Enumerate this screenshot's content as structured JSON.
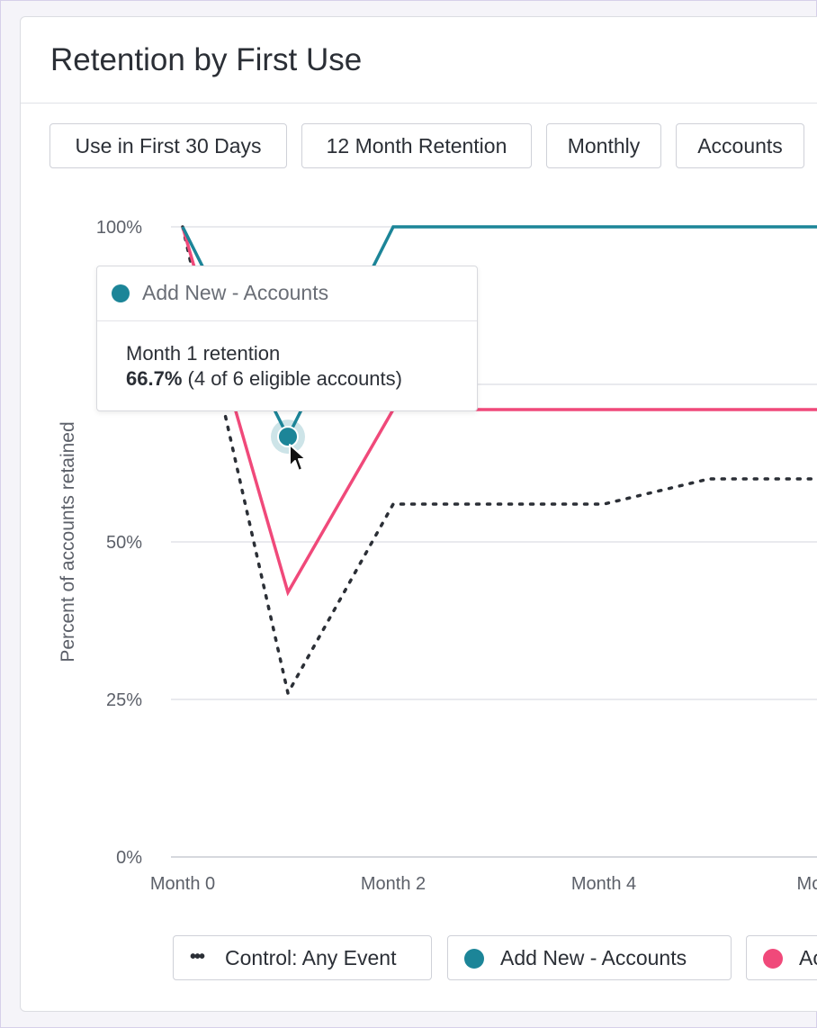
{
  "card": {
    "title": "Retention by First Use"
  },
  "filters": [
    {
      "label": "Use in First 30 Days"
    },
    {
      "label": "12 Month Retention"
    },
    {
      "label": "Monthly"
    },
    {
      "label": "Accounts"
    }
  ],
  "tooltip": {
    "series": "Add New - Accounts",
    "title": "Month 1 retention",
    "value": "66.7%",
    "detail": "(4 of 6 eligible accounts)"
  },
  "legend": [
    {
      "label": "Control: Any Event",
      "marker": "dots",
      "color": "#2b2f36"
    },
    {
      "label": "Add New - Accounts",
      "marker": "circle",
      "color": "#1c8598"
    },
    {
      "label": "Ac",
      "marker": "circle",
      "color": "#f0497a"
    }
  ],
  "chart_data": {
    "type": "line",
    "ylabel": "Percent of accounts retained",
    "ylim": [
      0,
      100
    ],
    "yticks": [
      "0%",
      "25%",
      "50%",
      "75%",
      "100%"
    ],
    "ytick_values": [
      0,
      25,
      50,
      75,
      100
    ],
    "xticks": [
      "Month 0",
      "Month 2",
      "Month 4",
      "Mon"
    ],
    "xtick_values": [
      0,
      2,
      4,
      6
    ],
    "grid": true,
    "series": [
      {
        "name": "Control: Any Event",
        "color": "#2b2f36",
        "style": "dotted",
        "x": [
          0,
          1,
          2,
          3,
          4,
          5,
          6,
          6.2
        ],
        "y": [
          100,
          26,
          56,
          56,
          56,
          60,
          60,
          60
        ]
      },
      {
        "name": "Add New - Accounts",
        "color": "#1c8598",
        "style": "solid",
        "x": [
          0,
          1,
          2,
          3,
          4,
          5,
          6,
          6.2
        ],
        "y": [
          100,
          66.7,
          100,
          100,
          100,
          100,
          100,
          100
        ]
      },
      {
        "name": "Ac",
        "color": "#f0497a",
        "style": "solid",
        "x": [
          0,
          1,
          2,
          3,
          4,
          5,
          6,
          6.2
        ],
        "y": [
          100,
          42,
          71,
          71,
          71,
          71,
          71,
          71
        ]
      }
    ],
    "highlight": {
      "series": "Add New - Accounts",
      "x": 1,
      "y": 66.7
    }
  }
}
